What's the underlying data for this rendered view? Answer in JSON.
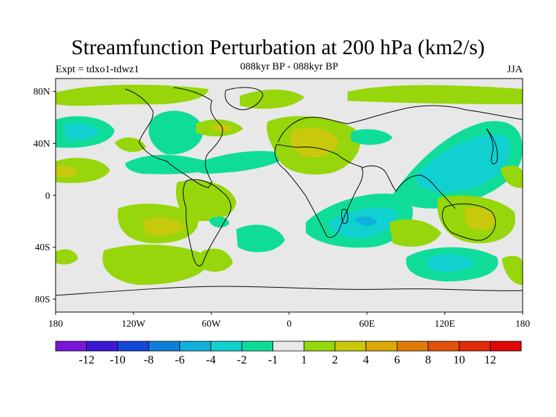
{
  "header": {
    "title": "Streamfunction Perturbation at 200 hPa (km2/s)",
    "experiment": "Expt = tdxo1-tdwz1",
    "period": "088kyr BP - 088kyr BP",
    "season": "JJA"
  },
  "axes": {
    "lat_labels": [
      "80N",
      "40N",
      "0",
      "40S",
      "80S"
    ],
    "lon_labels": [
      "180",
      "120W",
      "60W",
      "0",
      "60E",
      "120E",
      "180"
    ]
  },
  "legend": {
    "labels": [
      "-12",
      "-10",
      "-8",
      "-6",
      "-4",
      "-2",
      "-1",
      "1",
      "2",
      "4",
      "6",
      "8",
      "10",
      "12"
    ],
    "colors": [
      "#7b16d8",
      "#3a18d6",
      "#1448d6",
      "#0e80dc",
      "#0fb0dc",
      "#10d0d0",
      "#10dc9a",
      "#e8e8e8",
      "#96d60a",
      "#c8c80c",
      "#dcaa08",
      "#e07c0a",
      "#e0520a",
      "#e02a0a",
      "#e00808"
    ]
  }
}
